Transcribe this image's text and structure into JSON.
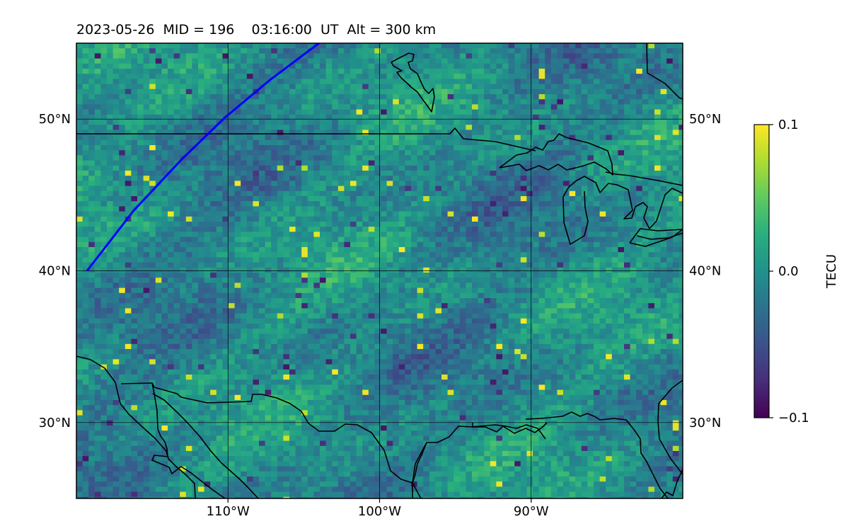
{
  "title": "2023-05-26  MID = 196    03:16:00  UT  Alt = 300 km",
  "map": {
    "lon_range": [
      -120,
      -80
    ],
    "lat_range": [
      25,
      55
    ],
    "lon_ticks": [
      {
        "value": -110,
        "label": "110°W"
      },
      {
        "value": -100,
        "label": "100°W"
      },
      {
        "value": -90,
        "label": "90°W"
      }
    ],
    "lat_ticks": [
      {
        "value": 50,
        "label": "50°N"
      },
      {
        "value": 40,
        "label": "40°N"
      },
      {
        "value": 30,
        "label": "30°N"
      }
    ],
    "grid": true,
    "colormap": "viridis",
    "track_color": "#0000ff",
    "track": [
      [
        -119.3,
        40.0
      ],
      [
        -116.2,
        44.0
      ],
      [
        -113.0,
        47.4
      ],
      [
        -110.2,
        50.1
      ],
      [
        -107.2,
        52.6
      ],
      [
        -104.0,
        55.0
      ]
    ]
  },
  "colorbar": {
    "label": "TECU",
    "min": -0.1,
    "max": 0.1,
    "ticks": [
      {
        "value": 0.1,
        "label": "0.1"
      },
      {
        "value": 0.0,
        "label": "0.0"
      },
      {
        "value": -0.1,
        "label": "−0.1"
      }
    ]
  }
}
